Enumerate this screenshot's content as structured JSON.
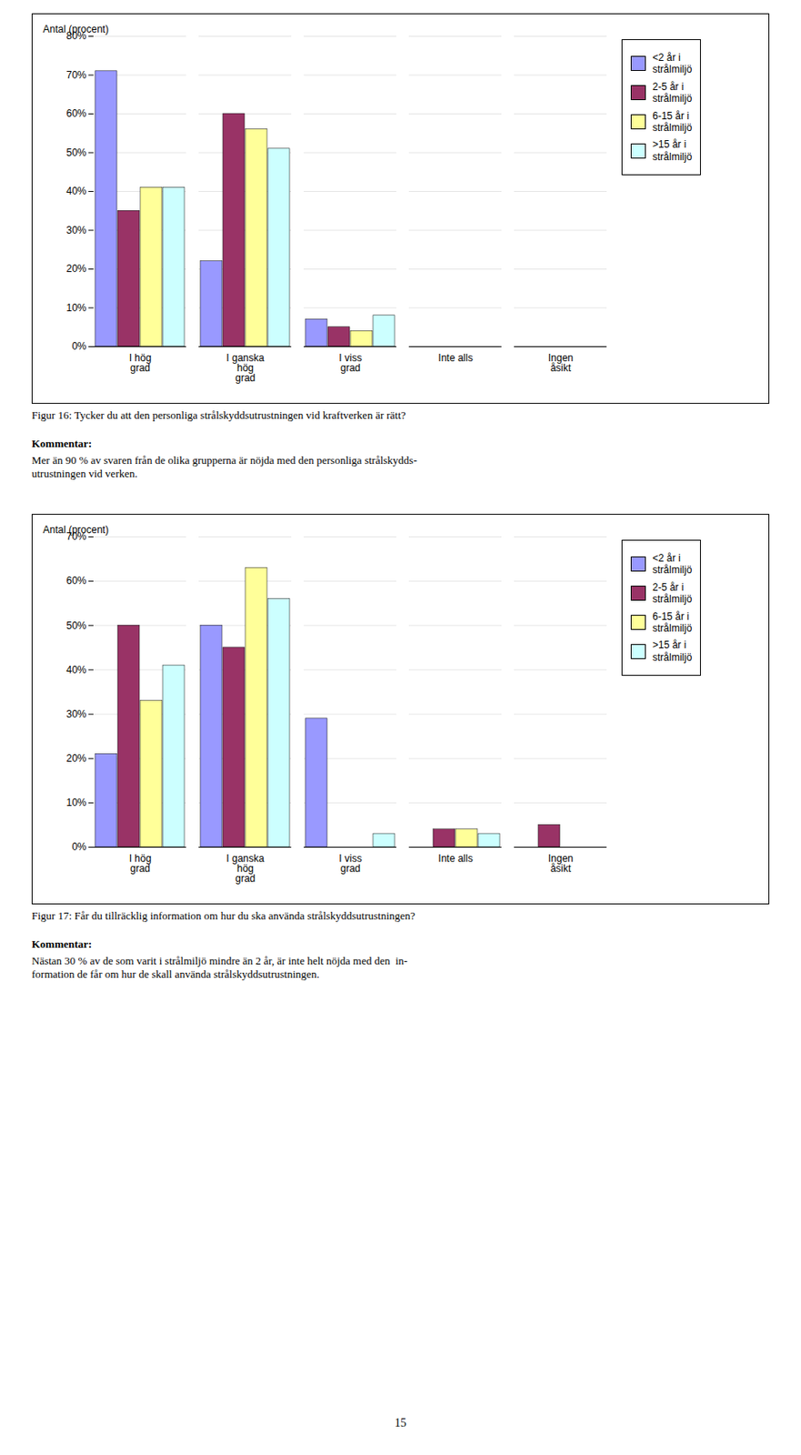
{
  "chart_data": [
    {
      "type": "bar",
      "ylabel": "Antal (procent)",
      "categories": [
        "I hög\ngrad",
        "I ganska\nhög\ngrad",
        "I viss\ngrad",
        "Inte alls",
        "Ingen\nåsikt"
      ],
      "series": [
        {
          "name": "<2 år i\nstrålmiljö",
          "color": "#9999FF",
          "values": [
            0.71,
            0.22,
            0.07,
            0.0,
            0.0
          ]
        },
        {
          "name": "2-5 år i\nstrålmiljö",
          "color": "#993366",
          "values": [
            0.35,
            0.6,
            0.05,
            0.0,
            0.0
          ]
        },
        {
          "name": "6-15 år i\nstrålmiljö",
          "color": "#FFFF99",
          "values": [
            0.41,
            0.56,
            0.04,
            0.0,
            0.0
          ]
        },
        {
          "name": ">15 år i\nstrålmiljö",
          "color": "#CCFFFF",
          "values": [
            0.41,
            0.51,
            0.08,
            0.0,
            0.0
          ]
        }
      ],
      "ylim": [
        0,
        0.8
      ],
      "yticks": [
        {
          "value": 0.0,
          "label": "0%"
        },
        {
          "value": 0.1,
          "label": "10%"
        },
        {
          "value": 0.2,
          "label": "20%"
        },
        {
          "value": 0.3,
          "label": "30%"
        },
        {
          "value": 0.4,
          "label": "40%"
        },
        {
          "value": 0.5,
          "label": "50%"
        },
        {
          "value": 0.6,
          "label": "60%"
        },
        {
          "value": 0.7,
          "label": "70%"
        },
        {
          "value": 0.8,
          "label": "80%"
        }
      ],
      "grid": true,
      "legend": "right",
      "caption": "Figur 16: Tycker du att den personliga strålskyddsutrustningen vid kraftverken är rätt?",
      "annotations": [
        "Kommentar:",
        "Mer än 90 % av svaren från de olika grupperna är nöjda med den personliga strålskydds-\nutrustningen vid verken."
      ]
    },
    {
      "type": "bar",
      "ylabel": "Antal (procent)",
      "categories": [
        "I hög\ngrad",
        "I ganska\nhög\ngrad",
        "I viss\ngrad",
        "Inte alls",
        "Ingen\nåsikt"
      ],
      "series": [
        {
          "name": "<2 år i\nstrålmiljö",
          "color": "#9999FF",
          "values": [
            0.21,
            0.5,
            0.29,
            0.0,
            0.0
          ]
        },
        {
          "name": "2-5 år i\nstrålmiljö",
          "color": "#993366",
          "values": [
            0.5,
            0.45,
            0.0,
            0.04,
            0.05
          ]
        },
        {
          "name": "6-15 år i\nstrålmiljö",
          "color": "#FFFF99",
          "values": [
            0.33,
            0.63,
            0.0,
            0.04,
            0.0
          ]
        },
        {
          "name": ">15 år i\nstrålmiljö",
          "color": "#CCFFFF",
          "values": [
            0.41,
            0.56,
            0.03,
            0.03,
            0.0
          ]
        }
      ],
      "ylim": [
        0,
        0.7
      ],
      "yticks": [
        {
          "value": 0.0,
          "label": "0%"
        },
        {
          "value": 0.1,
          "label": "10%"
        },
        {
          "value": 0.2,
          "label": "20%"
        },
        {
          "value": 0.3,
          "label": "30%"
        },
        {
          "value": 0.4,
          "label": "40%"
        },
        {
          "value": 0.5,
          "label": "50%"
        },
        {
          "value": 0.6,
          "label": "60%"
        },
        {
          "value": 0.7,
          "label": "70%"
        }
      ],
      "grid": true,
      "legend": "right",
      "caption": "Figur 17: Får du tillräcklig information om hur du ska använda strålskyddsutrustningen?",
      "annotations": [
        "Kommentar:",
        "Nästan 30 % av de som varit i strålmiljö mindre än 2 år, är inte helt nöjda med den  in-\nformation de får om hur de skall använda strålskyddsutrustningen."
      ]
    }
  ],
  "page_number": "15"
}
